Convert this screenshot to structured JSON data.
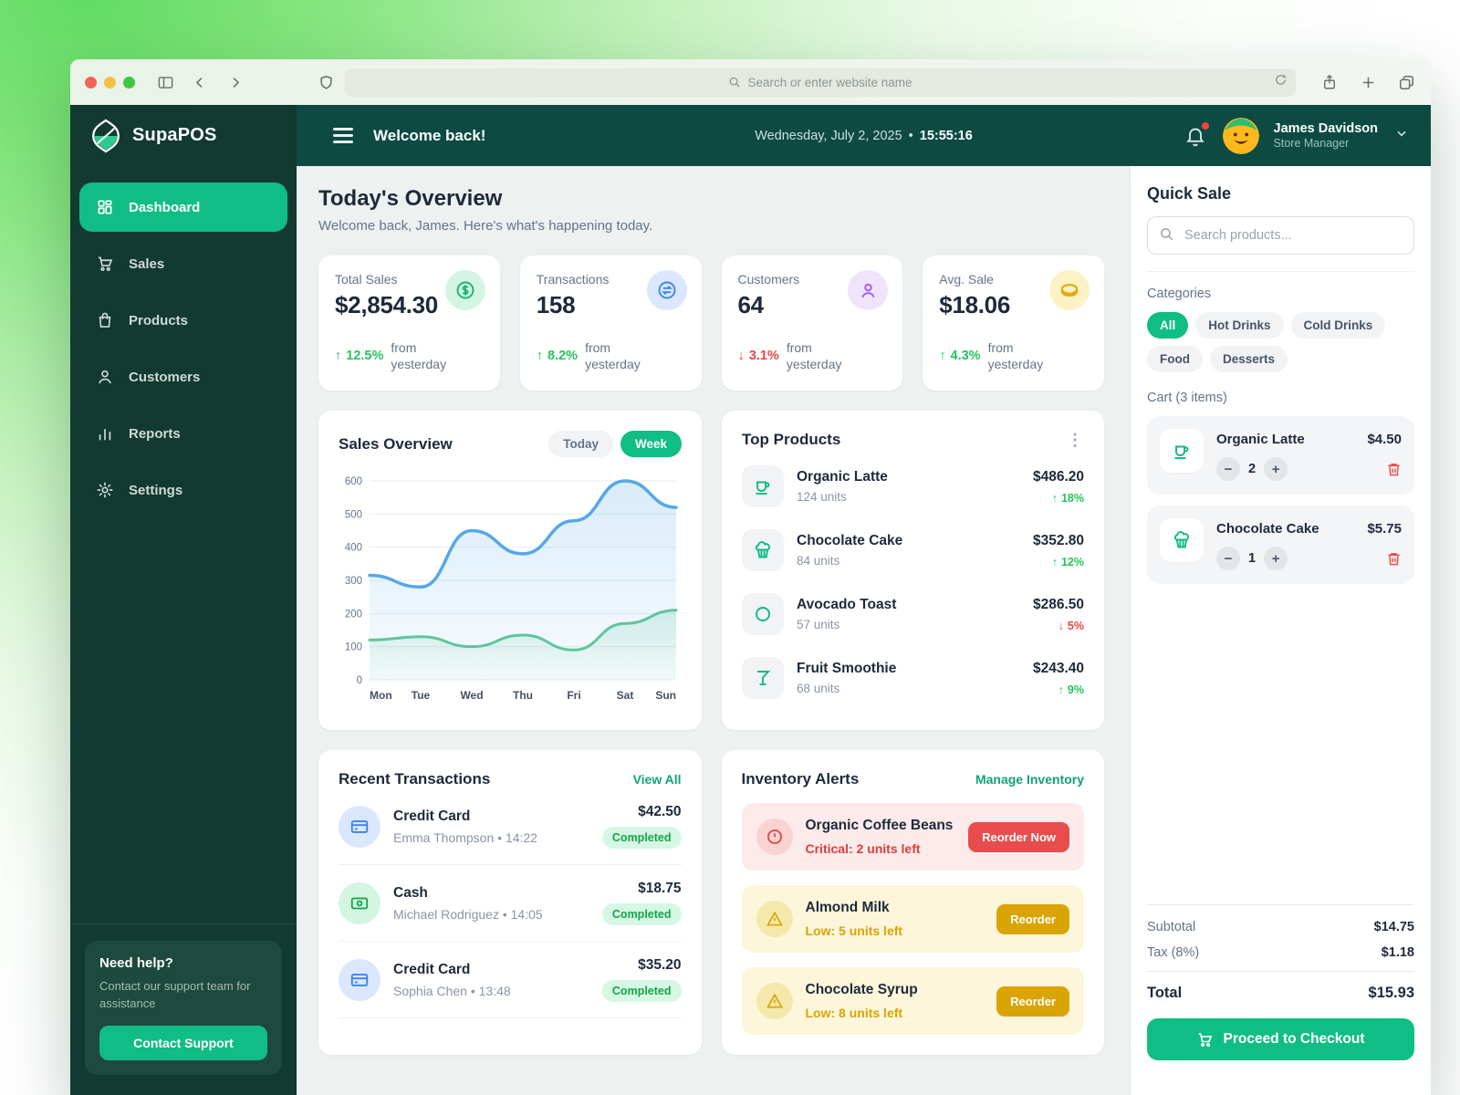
{
  "browser": {
    "url_placeholder": "Search or enter website name"
  },
  "sidebar": {
    "brand": "SupaPOS",
    "items": [
      {
        "label": "Dashboard",
        "state": "active"
      },
      {
        "label": "Sales",
        "state": "default"
      },
      {
        "label": "Products",
        "state": "default"
      },
      {
        "label": "Customers",
        "state": "default"
      },
      {
        "label": "Reports",
        "state": "default"
      },
      {
        "label": "Settings",
        "state": "default"
      }
    ],
    "help": {
      "title": "Need help?",
      "description": "Contact our support team for assistance",
      "button": "Contact Support"
    }
  },
  "header": {
    "title": "Welcome back!",
    "date": "Wednesday, July 2, 2025",
    "separator": "•",
    "time": "15:55:16",
    "user": {
      "name": "James Davidson",
      "role": "Store Manager"
    }
  },
  "overview": {
    "title": "Today's Overview",
    "subtitle": "Welcome back, James. Here's what's happening today.",
    "stats": [
      {
        "label": "Total Sales",
        "value": "$2,854.30",
        "dir": "up",
        "arrow": "↑",
        "change": "12.5%",
        "note": "from yesterday",
        "icon": "dollar-circle-icon"
      },
      {
        "label": "Transactions",
        "value": "158",
        "dir": "up",
        "arrow": "↑",
        "change": "8.2%",
        "note": "from yesterday",
        "icon": "transfer-circle-icon"
      },
      {
        "label": "Customers",
        "value": "64",
        "dir": "down",
        "arrow": "↓",
        "change": "3.1%",
        "note": "from yesterday",
        "icon": "person-circle-icon"
      },
      {
        "label": "Avg. Sale",
        "value": "$18.06",
        "dir": "up",
        "arrow": "↑",
        "change": "4.3%",
        "note": "from yesterday",
        "icon": "coin-icon"
      }
    ]
  },
  "sales_overview": {
    "title": "Sales Overview",
    "toggles": [
      {
        "label": "Today",
        "state": "off"
      },
      {
        "label": "Week",
        "state": "on"
      }
    ]
  },
  "chart_data": {
    "type": "line",
    "title": "Sales Overview",
    "x": [
      "Mon",
      "Tue",
      "Wed",
      "Thu",
      "Fri",
      "Sat",
      "Sun"
    ],
    "series": [
      {
        "name": "current-week-sales",
        "color": "#55a8e8",
        "values": [
          315,
          280,
          450,
          380,
          480,
          600,
          520
        ]
      },
      {
        "name": "secondary-sales",
        "color": "#5ec49c",
        "values": [
          120,
          130,
          100,
          135,
          90,
          170,
          210
        ]
      }
    ],
    "ylim": [
      0,
      600
    ],
    "yticks": [
      0,
      100,
      200,
      300,
      400,
      500,
      600
    ],
    "grid": true,
    "area_fill": true,
    "legend": "none"
  },
  "top_products": {
    "title": "Top Products",
    "items": [
      {
        "name": "Organic Latte",
        "units": "124 units",
        "revenue": "$486.20",
        "dir": "up",
        "arrow": "↑",
        "change": "18%",
        "icon": "coffee-cup-icon"
      },
      {
        "name": "Chocolate Cake",
        "units": "84 units",
        "revenue": "$352.80",
        "dir": "up",
        "arrow": "↑",
        "change": "12%",
        "icon": "cupcake-icon"
      },
      {
        "name": "Avocado Toast",
        "units": "57 units",
        "revenue": "$286.50",
        "dir": "down",
        "arrow": "↓",
        "change": "5%",
        "icon": "avocado-icon"
      },
      {
        "name": "Fruit Smoothie",
        "units": "68 units",
        "revenue": "$243.40",
        "dir": "up",
        "arrow": "↑",
        "change": "9%",
        "icon": "smoothie-icon"
      }
    ]
  },
  "transactions": {
    "title": "Recent Transactions",
    "view_all": "View All",
    "items": [
      {
        "method": "Credit Card",
        "meta": "Emma Thompson • 14:22",
        "amount": "$42.50",
        "status": "Completed",
        "icon": "credit-card-icon"
      },
      {
        "method": "Cash",
        "meta": "Michael Rodriguez • 14:05",
        "amount": "$18.75",
        "status": "Completed",
        "icon": "cash-icon"
      },
      {
        "method": "Credit Card",
        "meta": "Sophia Chen • 13:48",
        "amount": "$35.20",
        "status": "Completed",
        "icon": "credit-card-icon"
      }
    ]
  },
  "inventory": {
    "title": "Inventory Alerts",
    "manage": "Manage Inventory",
    "alerts": [
      {
        "name": "Organic Coffee Beans",
        "status_text": "Critical: 2 units left",
        "severity": "critical",
        "button": "Reorder Now",
        "icon": "alert-circle-icon"
      },
      {
        "name": "Almond Milk",
        "status_text": "Low: 5 units left",
        "severity": "low",
        "button": "Reorder",
        "icon": "warning-triangle-icon"
      },
      {
        "name": "Chocolate Syrup",
        "status_text": "Low: 8 units left",
        "severity": "low",
        "button": "Reorder",
        "icon": "warning-triangle-icon"
      }
    ]
  },
  "quick_sale": {
    "title": "Quick Sale",
    "search_placeholder": "Search products...",
    "categories_label": "Categories",
    "categories": [
      {
        "label": "All",
        "state": "on"
      },
      {
        "label": "Hot Drinks",
        "state": "off"
      },
      {
        "label": "Cold Drinks",
        "state": "off"
      },
      {
        "label": "Food",
        "state": "off"
      },
      {
        "label": "Desserts",
        "state": "off"
      }
    ],
    "cart_label": "Cart (3 items)",
    "cart": [
      {
        "name": "Organic Latte",
        "price": "$4.50",
        "qty": "2",
        "icon": "coffee-cup-icon"
      },
      {
        "name": "Chocolate Cake",
        "price": "$5.75",
        "qty": "1",
        "icon": "cupcake-icon"
      }
    ],
    "totals": {
      "subtotal_label": "Subtotal",
      "subtotal": "$14.75",
      "tax_label": "Tax (8%)",
      "tax": "$1.18",
      "total_label": "Total",
      "total": "$15.93"
    },
    "checkout": "Proceed to Checkout"
  },
  "colors": {
    "accent": "#10bd84",
    "sidebar_bg": "#123a30",
    "header_bg": "#0c4a42",
    "critical": "#e23b3b",
    "warning": "#d9a404",
    "positive": "#22c55e",
    "negative": "#ef4444"
  }
}
